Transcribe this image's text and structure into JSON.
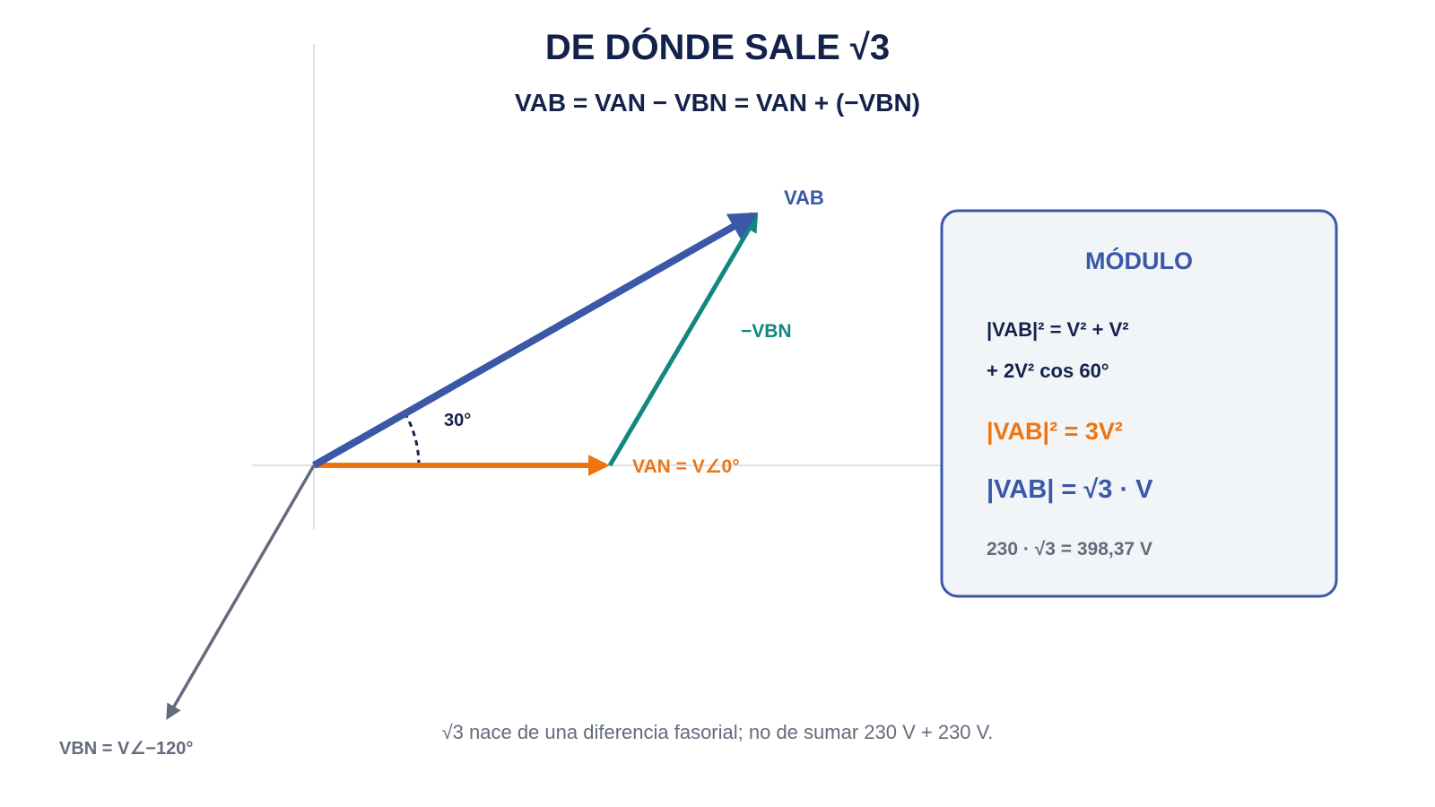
{
  "header": {
    "title": "DE DÓNDE SALE √3",
    "subtitle": "VAB = VAN − VBN = VAN + (−VBN)"
  },
  "diagram": {
    "vab_label": "VAB",
    "neg_vbn_label": "−VBN",
    "angle_label": "30°",
    "van_label": "VAN = V∠0°",
    "vbn_label": "VBN = V∠−120°"
  },
  "module_box": {
    "title": "MÓDULO",
    "lines": [
      "|VAB|² = V² + V²",
      "+ 2V² cos 60°",
      "|VAB|² = 3V²",
      "|VAB| = √3 · V",
      "230 · √3 = 398,37 V"
    ]
  },
  "footnote": "√3 nace de una diferencia fasorial; no de sumar 230 V + 230 V."
}
